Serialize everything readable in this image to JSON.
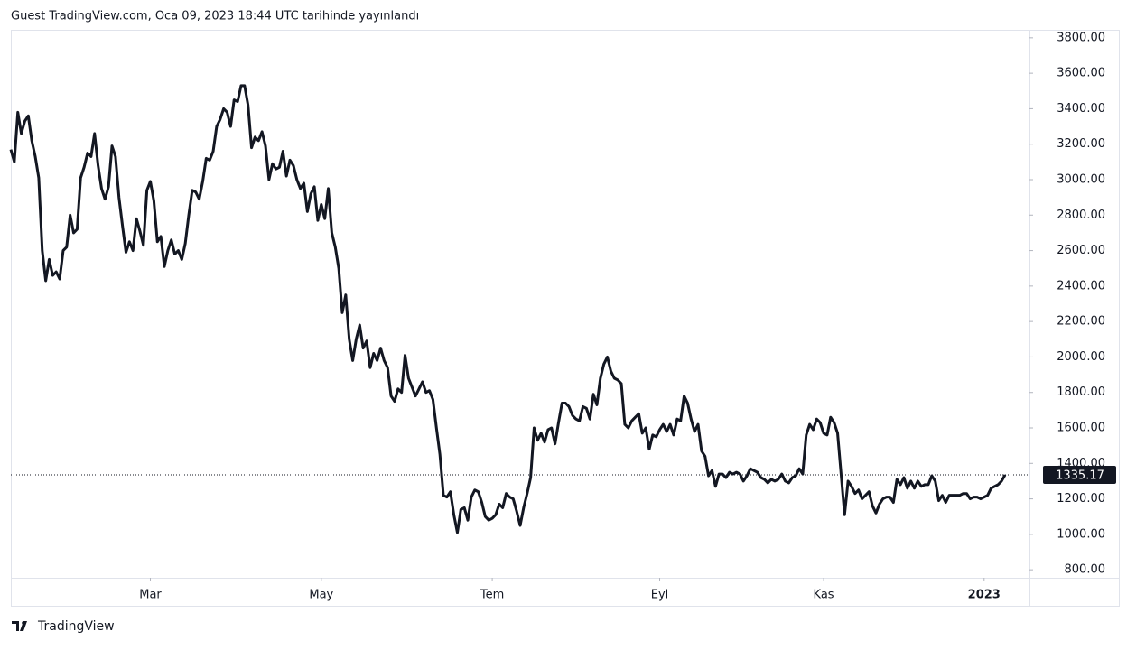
{
  "header": {
    "title": "Guest TradingView.com, Oca 09, 2023 18:44 UTC tarihinde yayınlandı"
  },
  "footer": {
    "brand": "TradingView"
  },
  "chart_data": {
    "type": "line",
    "series": [
      {
        "color": "#131722",
        "values": [
          3170,
          3100,
          3380,
          3260,
          3330,
          3360,
          3220,
          3130,
          3010,
          2600,
          2430,
          2550,
          2460,
          2480,
          2440,
          2600,
          2620,
          2800,
          2700,
          2720,
          3010,
          3070,
          3150,
          3130,
          3260,
          3080,
          2950,
          2890,
          2960,
          3190,
          3130,
          2900,
          2740,
          2590,
          2650,
          2600,
          2780,
          2710,
          2630,
          2940,
          2990,
          2880,
          2650,
          2680,
          2510,
          2600,
          2660,
          2580,
          2600,
          2550,
          2640,
          2800,
          2940,
          2930,
          2890,
          2990,
          3120,
          3110,
          3160,
          3300,
          3340,
          3400,
          3380,
          3300,
          3450,
          3440,
          3530,
          3530,
          3420,
          3180,
          3240,
          3220,
          3270,
          3190,
          3000,
          3090,
          3060,
          3070,
          3160,
          3020,
          3110,
          3080,
          3000,
          2950,
          2980,
          2820,
          2920,
          2960,
          2770,
          2860,
          2780,
          2950,
          2700,
          2620,
          2500,
          2250,
          2350,
          2100,
          1980,
          2100,
          2180,
          2050,
          2090,
          1940,
          2020,
          1980,
          2050,
          1980,
          1940,
          1780,
          1750,
          1820,
          1800,
          2010,
          1880,
          1830,
          1780,
          1820,
          1860,
          1800,
          1810,
          1760,
          1600,
          1450,
          1220,
          1210,
          1240,
          1110,
          1010,
          1140,
          1150,
          1080,
          1210,
          1250,
          1240,
          1180,
          1100,
          1080,
          1090,
          1110,
          1170,
          1150,
          1230,
          1210,
          1200,
          1130,
          1050,
          1150,
          1230,
          1320,
          1600,
          1530,
          1570,
          1520,
          1590,
          1600,
          1510,
          1630,
          1740,
          1740,
          1720,
          1670,
          1650,
          1640,
          1720,
          1710,
          1650,
          1790,
          1730,
          1880,
          1960,
          2000,
          1920,
          1880,
          1870,
          1850,
          1620,
          1600,
          1640,
          1660,
          1680,
          1570,
          1600,
          1480,
          1560,
          1550,
          1590,
          1620,
          1580,
          1620,
          1560,
          1650,
          1640,
          1780,
          1740,
          1650,
          1580,
          1620,
          1470,
          1440,
          1330,
          1360,
          1270,
          1340,
          1340,
          1320,
          1350,
          1340,
          1350,
          1340,
          1300,
          1330,
          1370,
          1360,
          1350,
          1320,
          1310,
          1290,
          1310,
          1300,
          1310,
          1340,
          1300,
          1290,
          1320,
          1330,
          1370,
          1340,
          1560,
          1620,
          1590,
          1650,
          1630,
          1570,
          1560,
          1660,
          1630,
          1570,
          1340,
          1110,
          1300,
          1270,
          1230,
          1250,
          1200,
          1220,
          1240,
          1160,
          1120,
          1170,
          1200,
          1210,
          1210,
          1180,
          1310,
          1280,
          1320,
          1260,
          1300,
          1260,
          1300,
          1270,
          1280,
          1280,
          1330,
          1300,
          1190,
          1220,
          1180,
          1220,
          1220,
          1220,
          1220,
          1230,
          1230,
          1200,
          1210,
          1210,
          1200,
          1210,
          1220,
          1260,
          1270,
          1280,
          1300,
          1335.17
        ]
      }
    ],
    "xlim": [
      0,
      292
    ],
    "xticks": [
      {
        "value": 40,
        "label": "Mar"
      },
      {
        "value": 89,
        "label": "May"
      },
      {
        "value": 138,
        "label": "Tem"
      },
      {
        "value": 186,
        "label": "Eyl"
      },
      {
        "value": 233,
        "label": "Kas"
      },
      {
        "value": 279,
        "label": "2023"
      }
    ],
    "ylim": [
      755,
      3845
    ],
    "yticks": [
      {
        "value": 800,
        "label": "800.00"
      },
      {
        "value": 1000,
        "label": "1000.00"
      },
      {
        "value": 1200,
        "label": "1200.00"
      },
      {
        "value": 1400,
        "label": "1400.00"
      },
      {
        "value": 1600,
        "label": "1600.00"
      },
      {
        "value": 1800,
        "label": "1800.00"
      },
      {
        "value": 2000,
        "label": "2000.00"
      },
      {
        "value": 2200,
        "label": "2200.00"
      },
      {
        "value": 2400,
        "label": "2400.00"
      },
      {
        "value": 2600,
        "label": "2600.00"
      },
      {
        "value": 2800,
        "label": "2800.00"
      },
      {
        "value": 3000,
        "label": "3000.00"
      },
      {
        "value": 3200,
        "label": "3200.00"
      },
      {
        "value": 3400,
        "label": "3400.00"
      },
      {
        "value": 3600,
        "label": "3600.00"
      },
      {
        "value": 3800,
        "label": "3800.00"
      }
    ]
  }
}
